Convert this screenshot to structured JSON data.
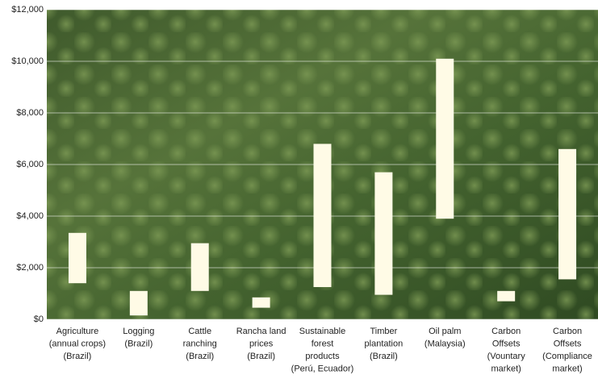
{
  "chart_data": {
    "type": "floating-bar",
    "categories": [
      [
        "Agriculture",
        "(annual crops)",
        "(Brazil)"
      ],
      [
        "Logging",
        "(Brazil)"
      ],
      [
        "Cattle",
        "ranching",
        "(Brazil)"
      ],
      [
        "Rancha land",
        "prices",
        "(Brazil)"
      ],
      [
        "Sustainable",
        "forest",
        "products",
        "(Perú, Ecuador)"
      ],
      [
        "Timber",
        "plantation",
        "(Brazil)"
      ],
      [
        "Oil palm",
        "(Malaysia)"
      ],
      [
        "Carbon",
        "Offsets",
        "(Vountary",
        "market)"
      ],
      [
        "Carbon",
        "Offsets",
        "(Compliance",
        "market)"
      ]
    ],
    "values": [
      [
        1400,
        3350
      ],
      [
        150,
        1100
      ],
      [
        1100,
        2950
      ],
      [
        450,
        850
      ],
      [
        1250,
        6800
      ],
      [
        950,
        5700
      ],
      [
        3900,
        10100
      ],
      [
        700,
        1100
      ],
      [
        1550,
        6600
      ]
    ],
    "color": "#fffbe6",
    "ylim": [
      0,
      12000
    ],
    "yticks": [
      {
        "value": 0,
        "label": "$0"
      },
      {
        "value": 2000,
        "label": "$2,000"
      },
      {
        "value": 4000,
        "label": "$4,000"
      },
      {
        "value": 6000,
        "label": "$6,000"
      },
      {
        "value": 8000,
        "label": "$8,000"
      },
      {
        "value": 10000,
        "label": "$10,000"
      },
      {
        "value": 12000,
        "label": "$12,000"
      }
    ],
    "grid": true
  }
}
